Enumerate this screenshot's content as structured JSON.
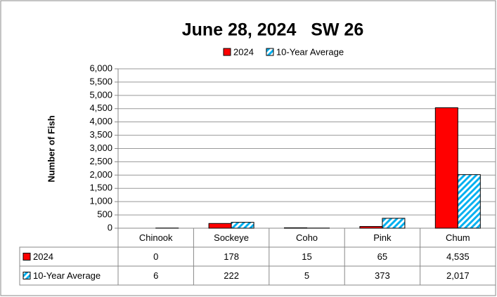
{
  "chart_data": {
    "type": "bar",
    "title": "June 28, 2024   SW 26",
    "y_label": "Number of Fish",
    "categories": [
      "Chinook",
      "Sockeye",
      "Coho",
      "Pink",
      "Chum"
    ],
    "series": [
      {
        "name": "2024",
        "color": "#ff0000",
        "values": [
          0,
          178,
          15,
          65,
          4535
        ],
        "value_labels": [
          "0",
          "178",
          "15",
          "65",
          "4,535"
        ]
      },
      {
        "name": "10-Year Average",
        "color": "#00b0f0",
        "pattern": "diagonal",
        "values": [
          6,
          222,
          5,
          373,
          2017
        ],
        "value_labels": [
          "6",
          "222",
          "5",
          "373",
          "2,017"
        ]
      }
    ],
    "ylim": [
      0,
      6000
    ],
    "yticks": [
      0,
      500,
      {
        "value": 1000,
        "label": "1,000"
      },
      {
        "value": 1500,
        "label": "1,500"
      },
      {
        "value": 2000,
        "label": "2,000"
      },
      {
        "value": 2500,
        "label": "2,500"
      },
      {
        "value": 3000,
        "label": "3,000"
      },
      {
        "value": 3500,
        "label": "3,500"
      },
      {
        "value": 4000,
        "label": "4,000"
      },
      {
        "value": 4500,
        "label": "4,500"
      },
      {
        "value": 5000,
        "label": "5,000"
      },
      {
        "value": 5500,
        "label": "5,500"
      },
      {
        "value": 6000,
        "label": "6,000"
      }
    ],
    "grid": true,
    "legend": "top"
  }
}
